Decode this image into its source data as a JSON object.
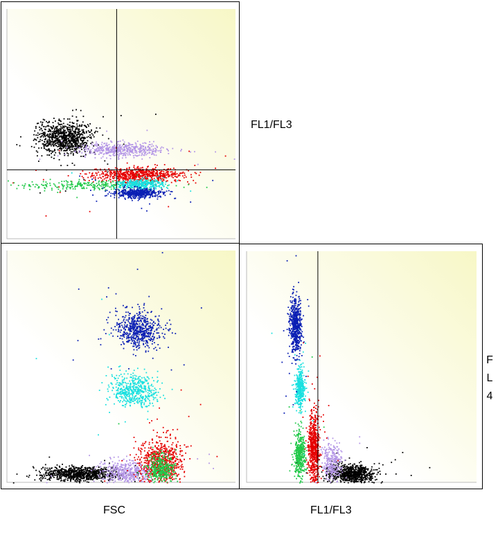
{
  "labels": {
    "top_right": "FL1/FL3",
    "bottom_left": "FSC",
    "bottom_right": "FL1/FL3",
    "right_vertical": [
      "F",
      "L",
      "4"
    ]
  },
  "colors": {
    "background_gradient_start": "#ffffff",
    "background_gradient_end": "#f7f7c6",
    "black": "#000000",
    "lavender": "#b496e6",
    "red": "#e60000",
    "green": "#22c94a",
    "cyan": "#19e0e0",
    "blue": "#0a1fb4"
  },
  "chart_data": [
    {
      "type": "scatter",
      "xlabel": "FSC",
      "ylabel": "FL1/FL3",
      "xlim": [
        0,
        1
      ],
      "ylim": [
        0,
        1
      ],
      "grid": false,
      "gate_lines": {
        "x": 0.48,
        "y": 0.3
      },
      "clusters": [
        {
          "color": "black",
          "cx": 0.25,
          "cy": 0.44,
          "sx": 0.06,
          "sy": 0.035,
          "n": 900
        },
        {
          "color": "lavender",
          "cx": 0.5,
          "cy": 0.39,
          "sx": 0.09,
          "sy": 0.014,
          "n": 500
        },
        {
          "color": "red",
          "cx": 0.57,
          "cy": 0.28,
          "sx": 0.1,
          "sy": 0.016,
          "n": 700
        },
        {
          "color": "green",
          "cx": 0.36,
          "cy": 0.235,
          "sx": 0.16,
          "sy": 0.011,
          "n": 250
        },
        {
          "color": "cyan",
          "cx": 0.58,
          "cy": 0.24,
          "sx": 0.05,
          "sy": 0.01,
          "n": 350
        },
        {
          "color": "blue",
          "cx": 0.57,
          "cy": 0.2,
          "sx": 0.05,
          "sy": 0.011,
          "n": 500
        }
      ]
    },
    {
      "type": "scatter",
      "xlabel": "FSC",
      "ylabel": "FL4",
      "xlim": [
        0,
        1
      ],
      "ylim": [
        0,
        1
      ],
      "grid": false,
      "gate_lines": {},
      "clusters": [
        {
          "color": "black",
          "cx": 0.32,
          "cy": 0.04,
          "sx": 0.09,
          "sy": 0.015,
          "n": 900
        },
        {
          "color": "lavender",
          "cx": 0.53,
          "cy": 0.05,
          "sx": 0.06,
          "sy": 0.025,
          "n": 500
        },
        {
          "color": "red",
          "cx": 0.67,
          "cy": 0.09,
          "sx": 0.05,
          "sy": 0.05,
          "n": 700
        },
        {
          "color": "green",
          "cx": 0.67,
          "cy": 0.06,
          "sx": 0.03,
          "sy": 0.03,
          "n": 350
        },
        {
          "color": "cyan",
          "cx": 0.55,
          "cy": 0.4,
          "sx": 0.05,
          "sy": 0.035,
          "n": 500
        },
        {
          "color": "blue",
          "cx": 0.57,
          "cy": 0.66,
          "sx": 0.05,
          "sy": 0.04,
          "n": 600
        }
      ]
    },
    {
      "type": "scatter",
      "xlabel": "FL1/FL3",
      "ylabel": "FL4",
      "xlim": [
        0,
        1
      ],
      "ylim": [
        0,
        1
      ],
      "grid": false,
      "gate_lines": {
        "x": 0.31
      },
      "clusters": [
        {
          "color": "black",
          "cx": 0.45,
          "cy": 0.04,
          "sx": 0.05,
          "sy": 0.02,
          "n": 800
        },
        {
          "color": "lavender",
          "cx": 0.37,
          "cy": 0.09,
          "sx": 0.02,
          "sy": 0.04,
          "n": 300
        },
        {
          "color": "red",
          "cx": 0.29,
          "cy": 0.15,
          "sx": 0.012,
          "sy": 0.08,
          "n": 700
        },
        {
          "color": "green",
          "cx": 0.23,
          "cy": 0.12,
          "sx": 0.012,
          "sy": 0.05,
          "n": 400
        },
        {
          "color": "cyan",
          "cx": 0.23,
          "cy": 0.41,
          "sx": 0.01,
          "sy": 0.04,
          "n": 400
        },
        {
          "color": "blue",
          "cx": 0.21,
          "cy": 0.68,
          "sx": 0.012,
          "sy": 0.06,
          "n": 600
        }
      ]
    }
  ]
}
